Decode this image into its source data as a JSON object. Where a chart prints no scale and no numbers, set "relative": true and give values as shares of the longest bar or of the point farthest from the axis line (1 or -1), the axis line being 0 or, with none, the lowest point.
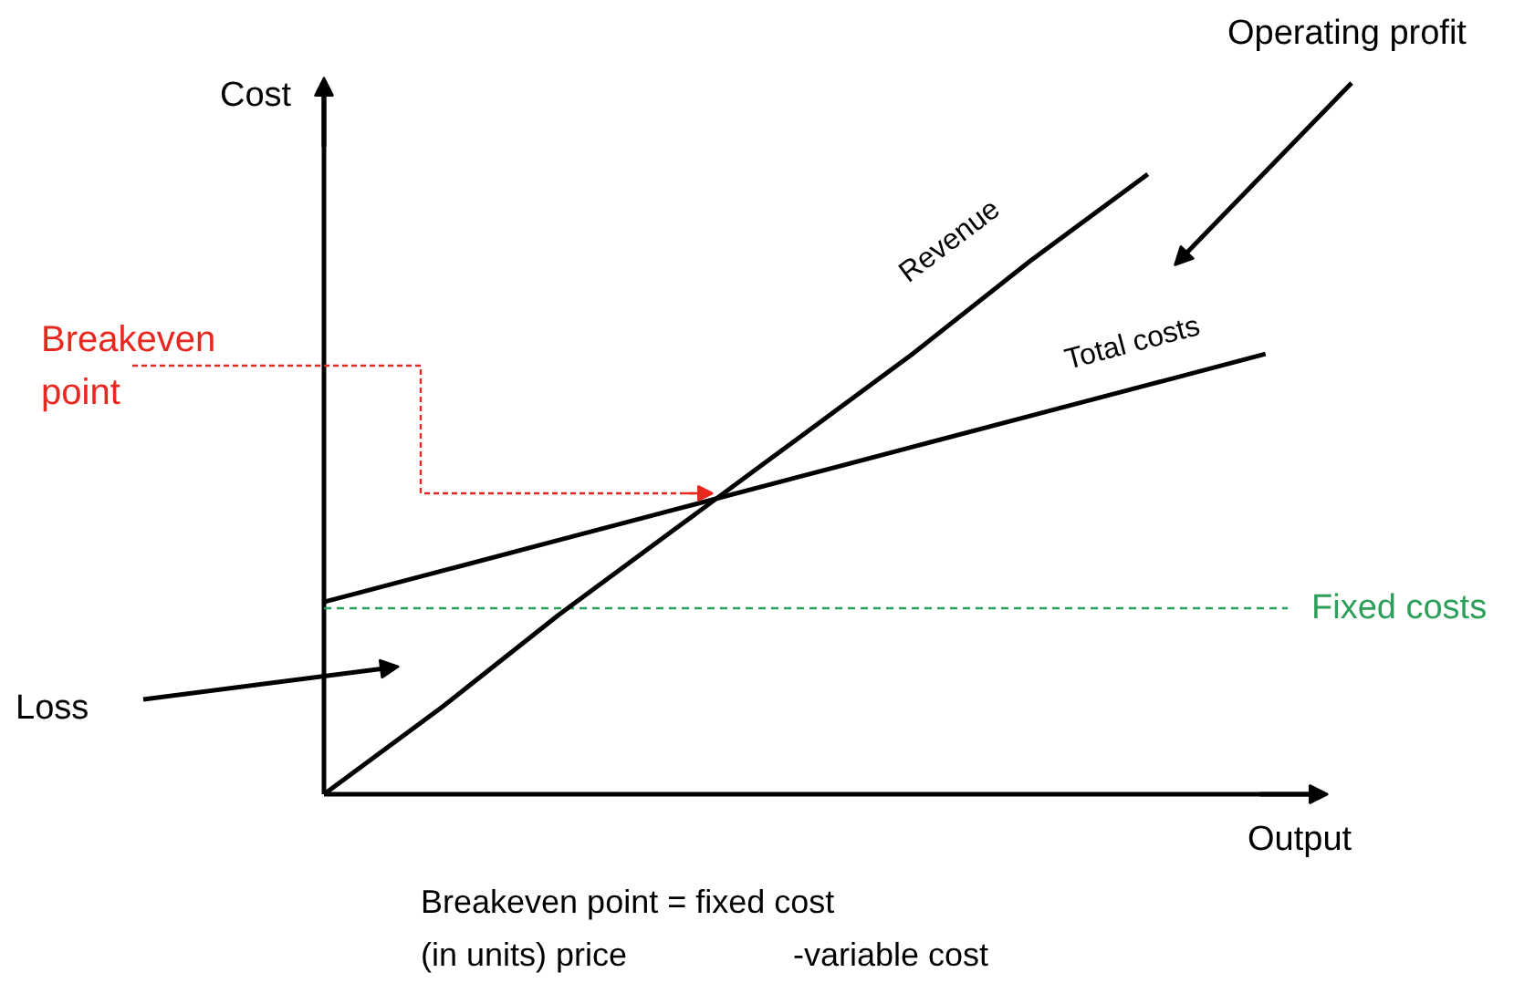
{
  "chart_data": {
    "type": "line",
    "relative": true,
    "xlabel": "Output",
    "ylabel": "Cost",
    "legend": false,
    "grid": false,
    "categories": [
      null,
      null,
      null,
      null,
      null,
      null,
      null,
      null,
      null
    ],
    "series": [
      {
        "name": "Revenue",
        "color": "#000000",
        "values": [
          0,
          0.14,
          0.29,
          0.43,
          0.57,
          0.71,
          0.86,
          1,
          null
        ]
      },
      {
        "name": "Total costs",
        "color": "#000000",
        "values": [
          0.31,
          0.36,
          0.41,
          0.46,
          0.51,
          0.56,
          0.61,
          0.66,
          0.71
        ]
      }
    ],
    "ref_lines": [
      {
        "axis": "y",
        "value": 0.3,
        "label": "Fixed costs",
        "color": "#2e9e5b",
        "line_style": "dashed"
      }
    ],
    "annotations": [
      "Breakeven point",
      "Operating profit",
      "Loss",
      "Breakeven point = fixed cost",
      "(in units) price",
      "-variable cost"
    ]
  }
}
